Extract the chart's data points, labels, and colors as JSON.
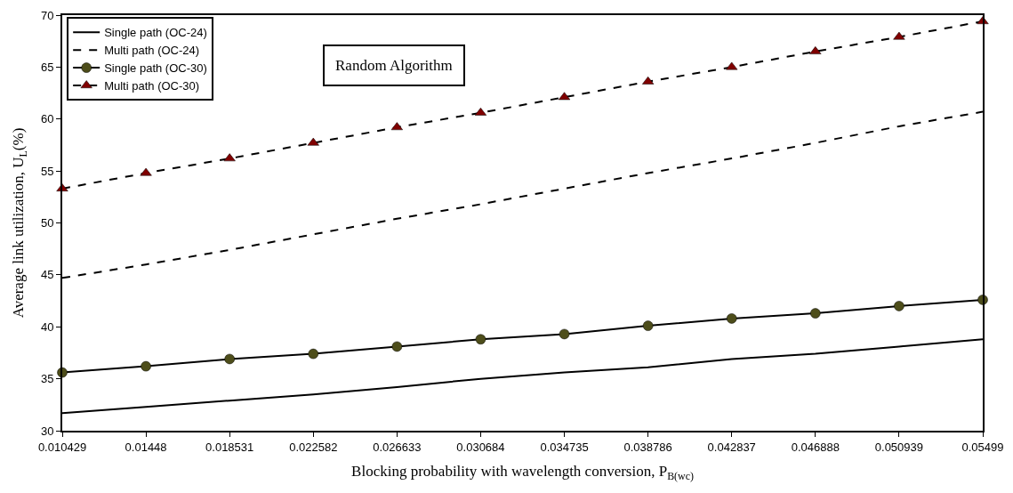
{
  "chart_data": {
    "type": "line",
    "xlabel": "Blocking probability with wavelength conversion, P$_{B(wc)}$",
    "ylabel": "Average link utilization, U$_{L}$(%)",
    "x": [
      0.010429,
      0.01448,
      0.018531,
      0.022582,
      0.026633,
      0.030684,
      0.034735,
      0.038786,
      0.042837,
      0.046888,
      0.050939,
      0.05499
    ],
    "xlim": [
      0.010429,
      0.05499
    ],
    "xticks": [
      0.010429,
      0.01448,
      0.018531,
      0.022582,
      0.026633,
      0.030684,
      0.034735,
      0.038786,
      0.042837,
      0.046888,
      0.050939,
      0.05499
    ],
    "ylim": [
      30,
      70
    ],
    "yticks": [
      30,
      35,
      40,
      45,
      50,
      55,
      60,
      65,
      70
    ],
    "legend": "top left",
    "annotations": [
      "Random Algorithm"
    ],
    "series": [
      {
        "name": "Single path (OC-24)",
        "color": "#000000",
        "line_style": "solid",
        "marker": "none",
        "values": [
          31.7,
          32.3,
          32.9,
          33.5,
          34.2,
          35.0,
          35.6,
          36.1,
          36.9,
          37.4,
          38.1,
          38.8
        ]
      },
      {
        "name": "Multi path (OC-24)",
        "color": "#000000",
        "line_style": "dashed",
        "marker": "none",
        "values": [
          44.7,
          46.0,
          47.4,
          48.9,
          50.4,
          51.8,
          53.3,
          54.8,
          56.2,
          57.7,
          59.3,
          60.7
        ]
      },
      {
        "name": "Single path (OC-30)",
        "color": "#000000",
        "colors": [
          "#4d4d1a",
          "#4d4d1a",
          "#4d4d1a",
          "#4d4d1a",
          "#4d4d1a",
          "#4d4d1a",
          "#4d4d1a",
          "#4d4d1a",
          "#4d4d1a",
          "#4d4d1a",
          "#4d4d1a",
          "#4d4d1a"
        ],
        "line_style": "solid",
        "marker": "circle",
        "values": [
          35.6,
          36.2,
          36.9,
          37.4,
          38.1,
          38.8,
          39.3,
          40.1,
          40.8,
          41.3,
          42.0,
          42.6
        ]
      },
      {
        "name": "Multi path (OC-30)",
        "color": "#000000",
        "colors": [
          "#800000",
          "#800000",
          "#800000",
          "#800000",
          "#800000",
          "#800000",
          "#800000",
          "#800000",
          "#800000",
          "#800000",
          "#800000",
          "#800000"
        ],
        "line_style": "dashed",
        "marker": "triangle",
        "values": [
          53.3,
          54.8,
          56.2,
          57.7,
          59.2,
          60.6,
          62.1,
          63.6,
          65.0,
          66.5,
          67.9,
          69.4
        ]
      }
    ]
  }
}
